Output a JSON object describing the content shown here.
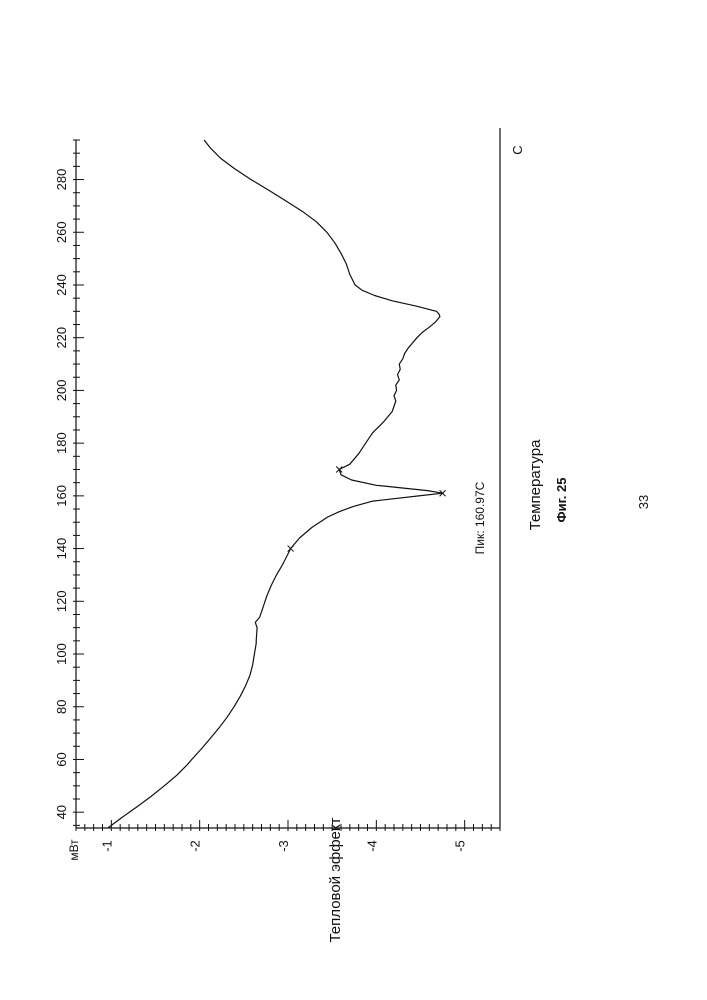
{
  "page": {
    "page_number": "33"
  },
  "figure": {
    "caption": "Фиг. 25"
  },
  "chart_data": {
    "type": "line",
    "orientation": "rotated-90-ccw",
    "xlabel": "Температура",
    "x_unit": "C",
    "ylabel": "Тепловой эффект",
    "y_unit": "мВт",
    "xlim": [
      34,
      295
    ],
    "ylim": [
      -5.4,
      -0.6
    ],
    "x_ticks": [
      40,
      60,
      80,
      100,
      120,
      140,
      160,
      180,
      200,
      220,
      240,
      260,
      280
    ],
    "x_tick_labels": [
      "40",
      "60",
      "80",
      "100",
      "120",
      "140",
      "160",
      "180",
      "200",
      "220",
      "240",
      "260",
      "280"
    ],
    "y_ticks": [
      -1,
      -2,
      -3,
      -4,
      -5
    ],
    "y_tick_labels": [
      "-1",
      "-2",
      "-3",
      "-4",
      "-5"
    ],
    "annotation": {
      "text": "Пик: 160.97C",
      "x": 161.0,
      "y": -4.75
    },
    "markers": [
      {
        "x": 140.0,
        "y": -3.03
      },
      {
        "x": 161.0,
        "y": -4.75
      },
      {
        "x": 170.0,
        "y": -3.58
      }
    ],
    "series": [
      {
        "color": "#111111",
        "x": [
          34,
          38,
          42,
          46,
          50,
          54,
          58,
          60,
          64,
          68,
          72,
          76,
          80,
          84,
          88,
          92,
          96,
          100,
          104,
          105,
          110,
          112,
          114,
          118,
          122,
          126,
          130,
          134,
          138,
          140,
          144,
          148,
          152,
          154,
          156,
          158,
          160,
          161,
          162,
          164,
          166,
          168,
          170,
          172,
          176,
          180,
          184,
          188,
          192,
          196,
          198,
          200,
          202,
          204,
          206,
          208,
          210,
          212,
          214,
          216,
          218,
          220,
          222,
          224,
          226,
          228,
          229,
          230,
          232,
          234,
          236,
          238,
          240,
          244,
          248,
          252,
          256,
          260,
          264,
          268,
          272,
          276,
          280,
          284,
          288,
          292,
          295
        ],
        "y": [
          -0.96,
          -1.12,
          -1.29,
          -1.45,
          -1.6,
          -1.74,
          -1.86,
          -1.91,
          -2.02,
          -2.12,
          -2.22,
          -2.31,
          -2.39,
          -2.46,
          -2.52,
          -2.57,
          -2.6,
          -2.62,
          -2.64,
          -2.64,
          -2.65,
          -2.63,
          -2.68,
          -2.72,
          -2.76,
          -2.81,
          -2.87,
          -2.94,
          -3.0,
          -3.03,
          -3.13,
          -3.27,
          -3.45,
          -3.58,
          -3.74,
          -3.96,
          -4.48,
          -4.75,
          -4.58,
          -4.0,
          -3.72,
          -3.6,
          -3.58,
          -3.7,
          -3.8,
          -3.88,
          -3.96,
          -4.08,
          -4.18,
          -4.22,
          -4.2,
          -4.23,
          -4.22,
          -4.26,
          -4.24,
          -4.27,
          -4.26,
          -4.3,
          -4.32,
          -4.36,
          -4.41,
          -4.46,
          -4.52,
          -4.6,
          -4.67,
          -4.72,
          -4.71,
          -4.68,
          -4.45,
          -4.18,
          -3.98,
          -3.84,
          -3.76,
          -3.7,
          -3.66,
          -3.6,
          -3.53,
          -3.44,
          -3.32,
          -3.16,
          -2.97,
          -2.78,
          -2.58,
          -2.4,
          -2.24,
          -2.12,
          -2.05
        ]
      }
    ]
  }
}
